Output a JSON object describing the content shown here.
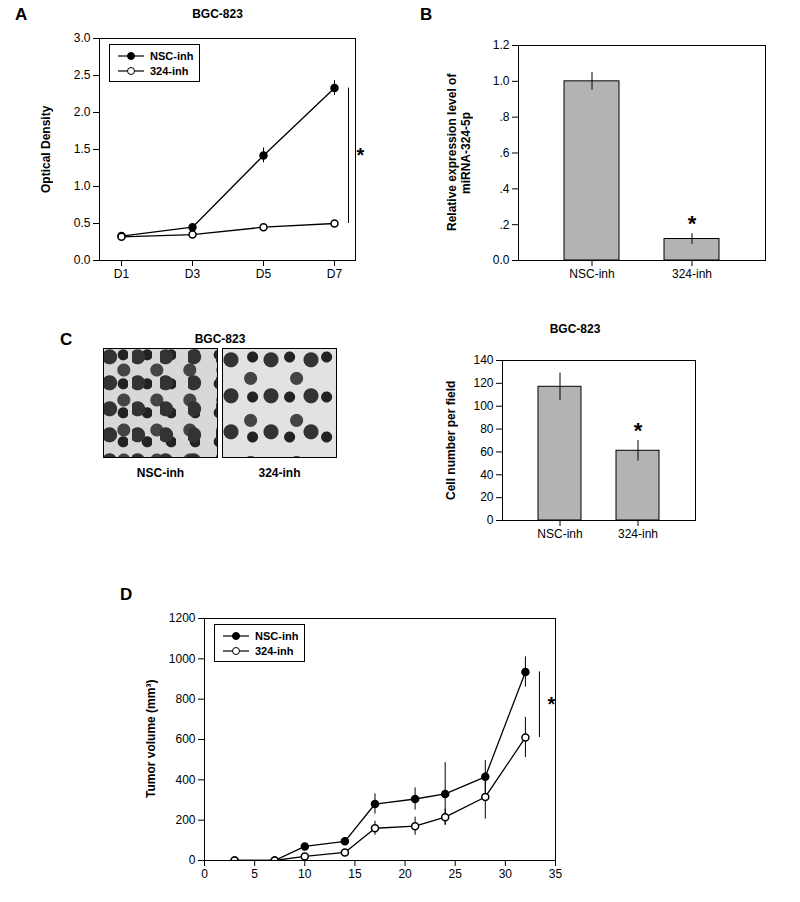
{
  "chart_data": [
    {
      "type": "line",
      "panel_label": "A",
      "title": "BGC-823",
      "ylabel": "Optical Density",
      "categories": [
        "D1",
        "D3",
        "D5",
        "D7"
      ],
      "series": [
        {
          "name": "NSC-inh",
          "color": "#000000",
          "marker": "circle",
          "values": [
            0.33,
            0.45,
            1.42,
            2.33
          ],
          "errors": [
            0.02,
            0.03,
            0.1,
            0.1
          ]
        },
        {
          "name": "324-inh",
          "color": "#000000",
          "marker": "open-circle",
          "values": [
            0.32,
            0.35,
            0.45,
            0.5
          ],
          "errors": [
            0.02,
            0.02,
            0.02,
            0.03
          ]
        }
      ],
      "ylim": [
        0,
        3
      ],
      "yticks": [
        {
          "value": 0,
          "label": "0.0"
        },
        0.5,
        {
          "value": 1,
          "label": "1.0"
        },
        1.5,
        {
          "value": 2,
          "label": "2.0"
        },
        2.5,
        {
          "value": 3,
          "label": "3.0"
        }
      ],
      "legend": "upper-left",
      "annotation": "*"
    },
    {
      "type": "bar",
      "panel_label": "B",
      "ylabel": [
        "Relative expression level of",
        "miRNA-324-5p"
      ],
      "categories": [
        "NSC-inh",
        "324-inh"
      ],
      "values": [
        1.0,
        0.12
      ],
      "errors": [
        0.05,
        0.03
      ],
      "color": "#b3b3b3",
      "ylim": [
        0,
        1.2
      ],
      "yticks": [
        {
          "value": 0,
          "label": "0.0"
        },
        {
          "value": 0.2,
          "label": ".2"
        },
        {
          "value": 0.4,
          "label": ".4"
        },
        {
          "value": 0.6,
          "label": ".6"
        },
        {
          "value": 0.8,
          "label": ".8"
        },
        {
          "value": 1,
          "label": "1.0"
        },
        {
          "value": 1.2,
          "label": "1.2"
        }
      ],
      "annotation": "*"
    },
    {
      "type": "image",
      "panel_label": "C",
      "title": "BGC-823",
      "categories": [
        "NSC-inh",
        "324-inh"
      ]
    },
    {
      "type": "bar",
      "title": "BGC-823",
      "ylabel": "Cell number per field",
      "categories": [
        "NSC-inh",
        "324-inh"
      ],
      "values": [
        117,
        61
      ],
      "errors": [
        12,
        9
      ],
      "color": "#b3b3b3",
      "ylim": [
        0,
        140
      ],
      "yticks": [
        0,
        20,
        40,
        60,
        80,
        100,
        120,
        140
      ],
      "annotation": "*"
    },
    {
      "type": "line",
      "panel_label": "D",
      "ylabel": "Tumor volume  (mm³)",
      "x": [
        3,
        7,
        10,
        14,
        17,
        21,
        24,
        28,
        32
      ],
      "series": [
        {
          "name": "NSC-inh",
          "color": "#000000",
          "marker": "circle",
          "values": [
            0,
            0,
            70,
            95,
            280,
            305,
            330,
            415,
            935
          ],
          "errors": [
            0,
            0,
            10,
            15,
            50,
            55,
            155,
            80,
            75
          ]
        },
        {
          "name": "324-inh",
          "color": "#000000",
          "marker": "open-circle",
          "values": [
            0,
            0,
            20,
            40,
            160,
            170,
            215,
            315,
            610
          ],
          "errors": [
            0,
            0,
            5,
            10,
            35,
            45,
            40,
            110,
            100
          ]
        }
      ],
      "xlim": [
        0,
        35
      ],
      "xticks": [
        0,
        5,
        10,
        15,
        20,
        25,
        30,
        35
      ],
      "ylim": [
        0,
        1200
      ],
      "yticks": [
        0,
        200,
        400,
        600,
        800,
        1000,
        1200
      ],
      "legend": "upper-left",
      "annotation": "*"
    }
  ]
}
